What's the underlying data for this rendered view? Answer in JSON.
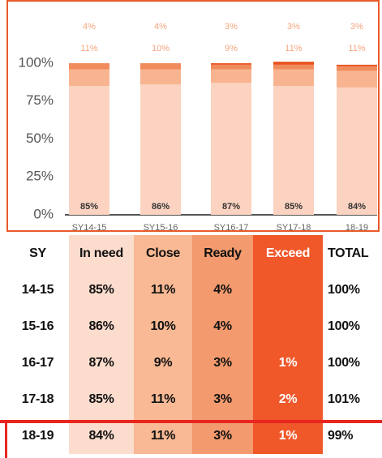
{
  "chart_data": {
    "type": "stacked_bar",
    "categories": [
      "SY14-15",
      "SY15-16",
      "SY16-17",
      "SY17-18",
      "18-19"
    ],
    "series": [
      {
        "name": "In need",
        "color": "#fbd3c0",
        "values": [
          85,
          86,
          87,
          85,
          84
        ],
        "value_labels": [
          "85%",
          "86%",
          "87%",
          "85%",
          "84%"
        ]
      },
      {
        "name": "Close",
        "color": "#f8b490",
        "values": [
          11,
          10,
          9,
          11,
          11
        ],
        "value_labels": [
          "11%",
          "10%",
          "9%",
          "11%",
          "11%"
        ]
      },
      {
        "name": "Ready",
        "color": "#f08b5c",
        "values": [
          4,
          4,
          3,
          3,
          3
        ],
        "value_labels": [
          "4%",
          "4%",
          "3%",
          "3%",
          "3%"
        ]
      },
      {
        "name": "Exceed",
        "color": "#e8521f",
        "values": [
          null,
          null,
          1,
          2,
          1
        ]
      }
    ],
    "ylim": [
      0,
      100
    ],
    "yticks": [
      {
        "value": 0,
        "label": "0%"
      },
      {
        "value": 25,
        "label": "25%"
      },
      {
        "value": 50,
        "label": "50%"
      },
      {
        "value": 75,
        "label": "75%"
      },
      {
        "value": 100,
        "label": "100%"
      }
    ],
    "grid": false
  },
  "table": {
    "header": [
      "SY",
      "In need",
      "Close",
      "Ready",
      "Exceed",
      "TOTAL"
    ],
    "rows": [
      [
        "14-15",
        "85%",
        "11%",
        "4%",
        null,
        "100%"
      ],
      [
        "15-16",
        "86%",
        "10%",
        "4%",
        null,
        "100%"
      ],
      [
        "16-17",
        "87%",
        "9%",
        "3%",
        "1%",
        "100%"
      ],
      [
        "17-18",
        "85%",
        "11%",
        "3%",
        "2%",
        "101%"
      ],
      [
        "18-19",
        "84%",
        "11%",
        "3%",
        "1%",
        "99%"
      ]
    ]
  }
}
